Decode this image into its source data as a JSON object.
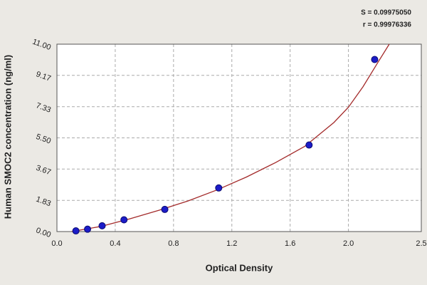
{
  "chart_data": {
    "type": "scatter",
    "x_label": "Optical Density",
    "y_label": "Human SMOC2 concentration (ng/ml)",
    "annotations": [
      "S = 0.09975050",
      "r = 0.99976336"
    ],
    "xlim": [
      0,
      2.5
    ],
    "xticks": [
      {
        "value": 0,
        "label": "0.0"
      },
      0.4,
      0.8,
      1.2,
      1.6,
      {
        "value": 2,
        "label": "2.0"
      },
      2.5
    ],
    "ylim": [
      0,
      11
    ],
    "yticks": [
      {
        "value": 0,
        "label": "0.00"
      },
      1.83,
      3.67,
      {
        "value": 5.5,
        "label": "5.50"
      },
      7.33,
      9.17,
      {
        "value": 11,
        "label": "11.00"
      }
    ],
    "grid": true,
    "series": [
      {
        "color": "#1c1cc8",
        "x": [
          0.13,
          0.21,
          0.31,
          0.46,
          0.74,
          1.11,
          1.73,
          2.18
        ],
        "values": [
          0.04,
          0.14,
          0.34,
          0.69,
          1.3,
          2.56,
          5.08,
          10.1
        ]
      },
      {
        "type": "line",
        "color": "#a32a2a",
        "x": [
          0.1,
          0.3,
          0.5,
          0.7,
          0.9,
          1.1,
          1.3,
          1.5,
          1.7,
          1.9,
          2.0,
          2.1,
          2.2,
          2.28
        ],
        "values": [
          0.0,
          0.3,
          0.75,
          1.25,
          1.8,
          2.45,
          3.2,
          4.05,
          5.0,
          6.4,
          7.3,
          8.5,
          9.9,
          11.0
        ]
      }
    ]
  }
}
